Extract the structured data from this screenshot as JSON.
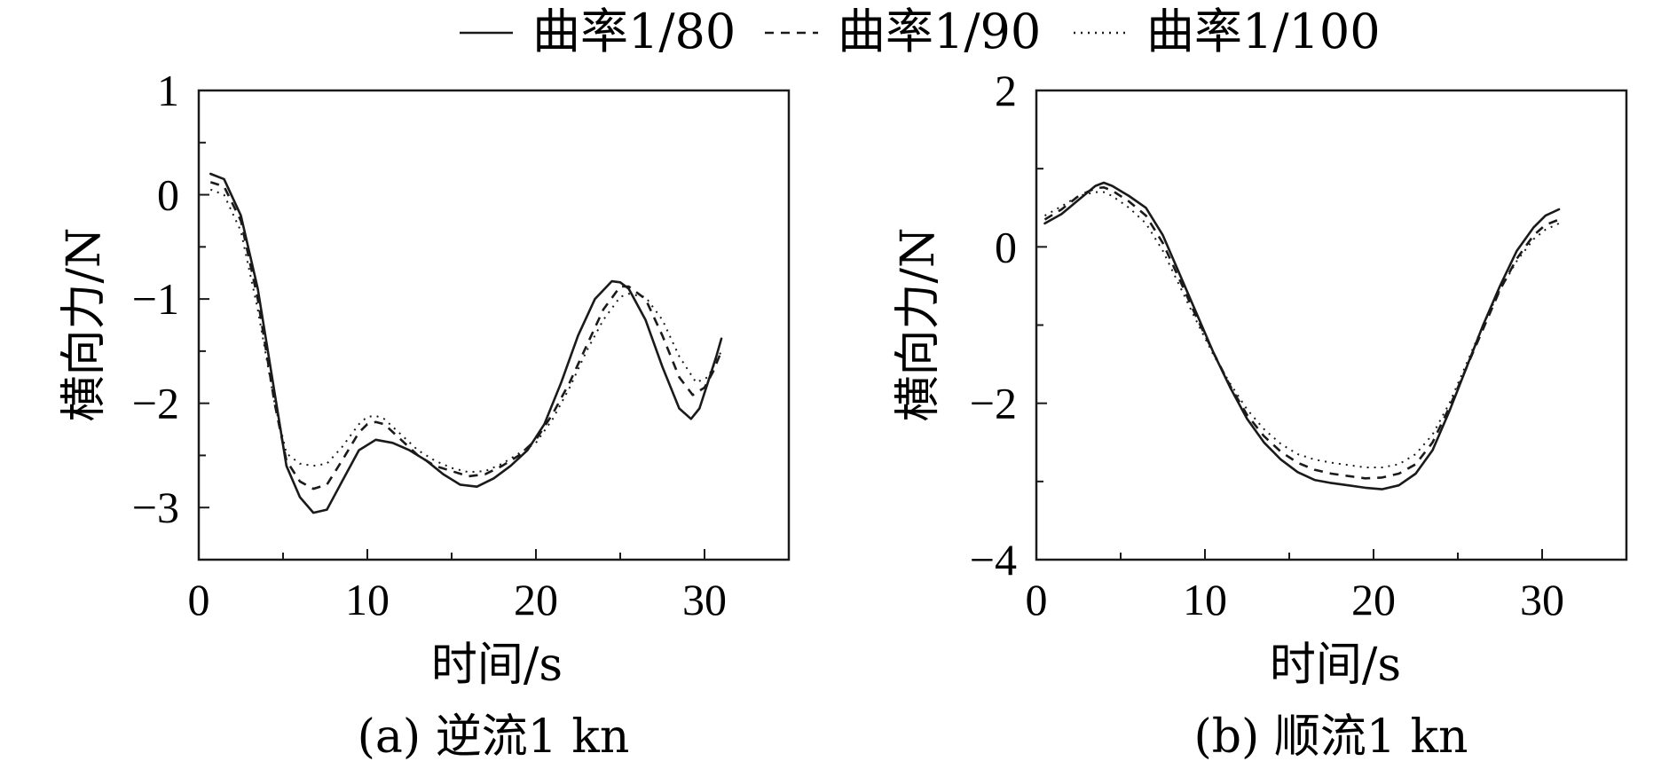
{
  "legend": [
    {
      "label": "曲率1/80",
      "style": "solid"
    },
    {
      "label": "曲率1/90",
      "style": "dashed"
    },
    {
      "label": "曲率1/100",
      "style": "dotted"
    }
  ],
  "chart_data": [
    {
      "type": "line",
      "caption": "(a) 逆流1 kn",
      "xlabel": "时间/s",
      "ylabel": "横向力/N",
      "xlim": [
        0,
        35
      ],
      "ylim": [
        -3.5,
        1
      ],
      "xticks": [
        0,
        10,
        20,
        30
      ],
      "xtick_labels": [
        "0",
        "10",
        "20",
        "30"
      ],
      "yticks": [
        1,
        0,
        -1,
        -2,
        -3
      ],
      "ytick_labels": [
        "1",
        "0",
        "−1",
        "−2",
        "−3"
      ],
      "x_minor_step": 5,
      "y_minor_step": 0.5,
      "grid": false,
      "series": [
        {
          "name": "曲率1/80",
          "style": "solid",
          "x": [
            0.7,
            1.5,
            2.5,
            3.5,
            4.5,
            5.2,
            6.0,
            6.8,
            7.6,
            8.5,
            9.5,
            10.5,
            11.5,
            12.5,
            13.5,
            14.5,
            15.5,
            16.5,
            17.5,
            18.5,
            19.5,
            20.5,
            21.5,
            22.5,
            23.5,
            24.5,
            25.0,
            25.5,
            26.5,
            27.5,
            28.5,
            29.2,
            29.7,
            30.2,
            30.7,
            31.0
          ],
          "y": [
            0.2,
            0.15,
            -0.2,
            -0.9,
            -1.9,
            -2.6,
            -2.9,
            -3.05,
            -3.02,
            -2.75,
            -2.45,
            -2.35,
            -2.38,
            -2.45,
            -2.55,
            -2.68,
            -2.78,
            -2.8,
            -2.72,
            -2.6,
            -2.45,
            -2.2,
            -1.8,
            -1.35,
            -1.0,
            -0.83,
            -0.84,
            -0.9,
            -1.2,
            -1.65,
            -2.05,
            -2.15,
            -2.05,
            -1.8,
            -1.55,
            -1.38
          ]
        },
        {
          "name": "曲率1/90",
          "style": "dashed",
          "x": [
            0.7,
            1.5,
            2.5,
            3.5,
            4.5,
            5.2,
            6.0,
            6.8,
            7.6,
            8.5,
            9.5,
            10.0,
            10.5,
            11.0,
            12.0,
            13.0,
            14.0,
            15.0,
            16.0,
            17.0,
            18.0,
            19.0,
            20.0,
            21.0,
            22.0,
            23.0,
            24.0,
            25.0,
            25.5,
            26.5,
            27.5,
            28.5,
            29.3,
            30.0,
            30.5,
            31.0
          ],
          "y": [
            0.12,
            0.08,
            -0.25,
            -1.0,
            -2.0,
            -2.55,
            -2.75,
            -2.82,
            -2.78,
            -2.55,
            -2.28,
            -2.2,
            -2.18,
            -2.2,
            -2.35,
            -2.5,
            -2.6,
            -2.65,
            -2.7,
            -2.68,
            -2.6,
            -2.5,
            -2.35,
            -2.1,
            -1.8,
            -1.45,
            -1.1,
            -0.88,
            -0.88,
            -1.0,
            -1.35,
            -1.75,
            -1.92,
            -1.85,
            -1.7,
            -1.5
          ]
        },
        {
          "name": "曲率1/100",
          "style": "dotted",
          "x": [
            0.7,
            1.5,
            2.5,
            3.5,
            4.5,
            5.2,
            6.0,
            6.8,
            7.6,
            8.5,
            9.5,
            10.0,
            10.5,
            11.0,
            12.0,
            13.0,
            14.0,
            15.0,
            16.0,
            17.0,
            18.0,
            19.0,
            20.0,
            21.0,
            22.0,
            23.0,
            24.0,
            25.0,
            25.5,
            26.5,
            27.5,
            28.5,
            29.5,
            30.2,
            31.0
          ],
          "y": [
            0.05,
            0.0,
            -0.35,
            -1.1,
            -2.0,
            -2.48,
            -2.58,
            -2.6,
            -2.58,
            -2.42,
            -2.2,
            -2.13,
            -2.12,
            -2.15,
            -2.3,
            -2.45,
            -2.55,
            -2.62,
            -2.66,
            -2.65,
            -2.58,
            -2.48,
            -2.38,
            -2.15,
            -1.85,
            -1.5,
            -1.2,
            -0.98,
            -0.95,
            -0.98,
            -1.2,
            -1.55,
            -1.8,
            -1.75,
            -1.5
          ]
        }
      ]
    },
    {
      "type": "line",
      "caption": "(b) 顺流1 kn",
      "xlabel": "时间/s",
      "ylabel": "横向力/N",
      "xlim": [
        0,
        35
      ],
      "ylim": [
        -4,
        2
      ],
      "xticks": [
        0,
        10,
        20,
        30
      ],
      "xtick_labels": [
        "0",
        "10",
        "20",
        "30"
      ],
      "yticks": [
        2,
        0,
        -2,
        -4
      ],
      "ytick_labels": [
        "2",
        "0",
        "−2",
        "−4"
      ],
      "x_minor_step": 5,
      "y_minor_step": 1,
      "grid": false,
      "series": [
        {
          "name": "曲率1/80",
          "style": "solid",
          "x": [
            0.5,
            1.5,
            2.5,
            3.5,
            4.0,
            4.5,
            5.5,
            6.5,
            7.5,
            8.5,
            9.5,
            10.5,
            11.5,
            12.5,
            13.5,
            14.5,
            15.5,
            16.5,
            17.5,
            18.5,
            19.5,
            20.5,
            21.5,
            22.5,
            23.5,
            24.5,
            25.5,
            26.5,
            27.5,
            28.5,
            29.5,
            30.2,
            31.0
          ],
          "y": [
            0.3,
            0.42,
            0.6,
            0.78,
            0.82,
            0.78,
            0.65,
            0.5,
            0.15,
            -0.35,
            -0.85,
            -1.35,
            -1.8,
            -2.2,
            -2.5,
            -2.72,
            -2.88,
            -2.98,
            -3.02,
            -3.05,
            -3.08,
            -3.1,
            -3.05,
            -2.9,
            -2.6,
            -2.1,
            -1.55,
            -1.0,
            -0.5,
            -0.05,
            0.25,
            0.4,
            0.48
          ]
        },
        {
          "name": "曲率1/90",
          "style": "dashed",
          "x": [
            0.5,
            1.5,
            2.5,
            3.5,
            4.0,
            4.5,
            5.5,
            6.5,
            7.5,
            8.5,
            9.5,
            10.5,
            11.5,
            12.5,
            13.5,
            14.5,
            15.5,
            16.5,
            17.5,
            18.5,
            19.5,
            20.5,
            21.5,
            22.5,
            23.5,
            24.5,
            25.5,
            26.5,
            27.5,
            28.5,
            29.5,
            30.2,
            31.0
          ],
          "y": [
            0.35,
            0.48,
            0.65,
            0.75,
            0.76,
            0.72,
            0.58,
            0.4,
            0.05,
            -0.42,
            -0.9,
            -1.35,
            -1.78,
            -2.15,
            -2.42,
            -2.62,
            -2.76,
            -2.85,
            -2.9,
            -2.93,
            -2.96,
            -2.95,
            -2.9,
            -2.78,
            -2.5,
            -2.05,
            -1.55,
            -1.05,
            -0.55,
            -0.15,
            0.15,
            0.28,
            0.35
          ]
        },
        {
          "name": "曲率1/100",
          "style": "dotted",
          "x": [
            0.5,
            1.5,
            2.5,
            3.5,
            4.0,
            4.5,
            5.5,
            6.5,
            7.5,
            8.5,
            9.5,
            10.5,
            11.5,
            12.5,
            13.5,
            14.5,
            15.5,
            16.5,
            17.5,
            18.5,
            19.5,
            20.5,
            21.5,
            22.5,
            23.5,
            24.5,
            25.5,
            26.5,
            27.5,
            28.5,
            29.5,
            30.2,
            31.0
          ],
          "y": [
            0.4,
            0.52,
            0.65,
            0.7,
            0.7,
            0.65,
            0.5,
            0.3,
            -0.05,
            -0.5,
            -0.95,
            -1.38,
            -1.75,
            -2.08,
            -2.33,
            -2.52,
            -2.65,
            -2.72,
            -2.76,
            -2.79,
            -2.82,
            -2.82,
            -2.78,
            -2.65,
            -2.4,
            -2.0,
            -1.5,
            -1.0,
            -0.55,
            -0.18,
            0.1,
            0.22,
            0.3
          ]
        }
      ]
    }
  ]
}
